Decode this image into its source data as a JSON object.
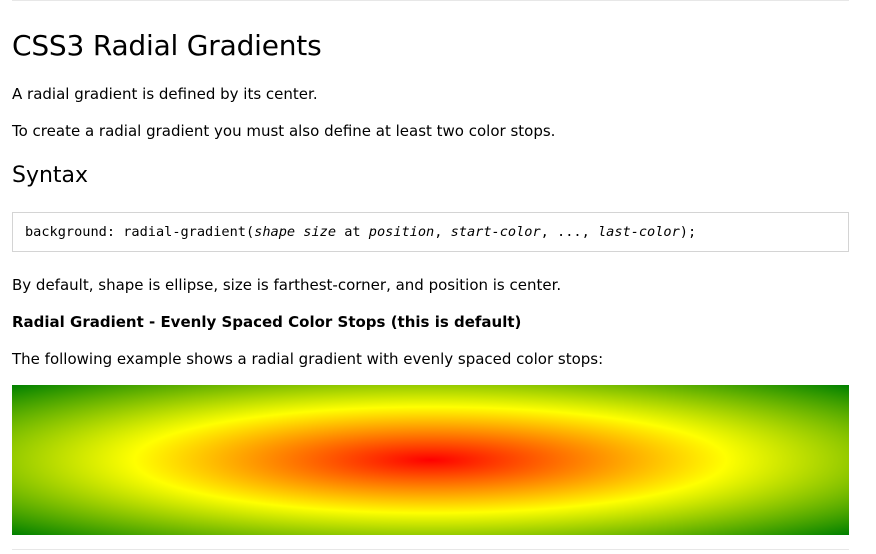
{
  "page": {
    "title": "CSS3 Radial Gradients",
    "intro": "A radial gradient is defined by its center.",
    "requirement": "To create a radial gradient you must also define at least two color stops.",
    "syntax_heading": "Syntax",
    "syntax_code": {
      "prefix": "background: radial-gradient(",
      "shape": "shape",
      "space1": " ",
      "size": "size",
      "at": " at ",
      "position": "position",
      "sep1": ", ",
      "start_color": "start-color",
      "sep2": ", ..., ",
      "last_color": "last-color",
      "suffix": ");"
    },
    "defaults_text": "By default, shape is ellipse, size is farthest-corner, and position is center.",
    "example_heading": "Radial Gradient - Evenly Spaced Color Stops (this is default)",
    "example_desc": "The following example shows a radial gradient with evenly spaced color stops:"
  },
  "colors": {
    "gradient_stops": [
      "#ff0000",
      "#ffff00",
      "#008000"
    ],
    "rule": "#e7e7e7",
    "code_border": "#d4d4d4"
  }
}
